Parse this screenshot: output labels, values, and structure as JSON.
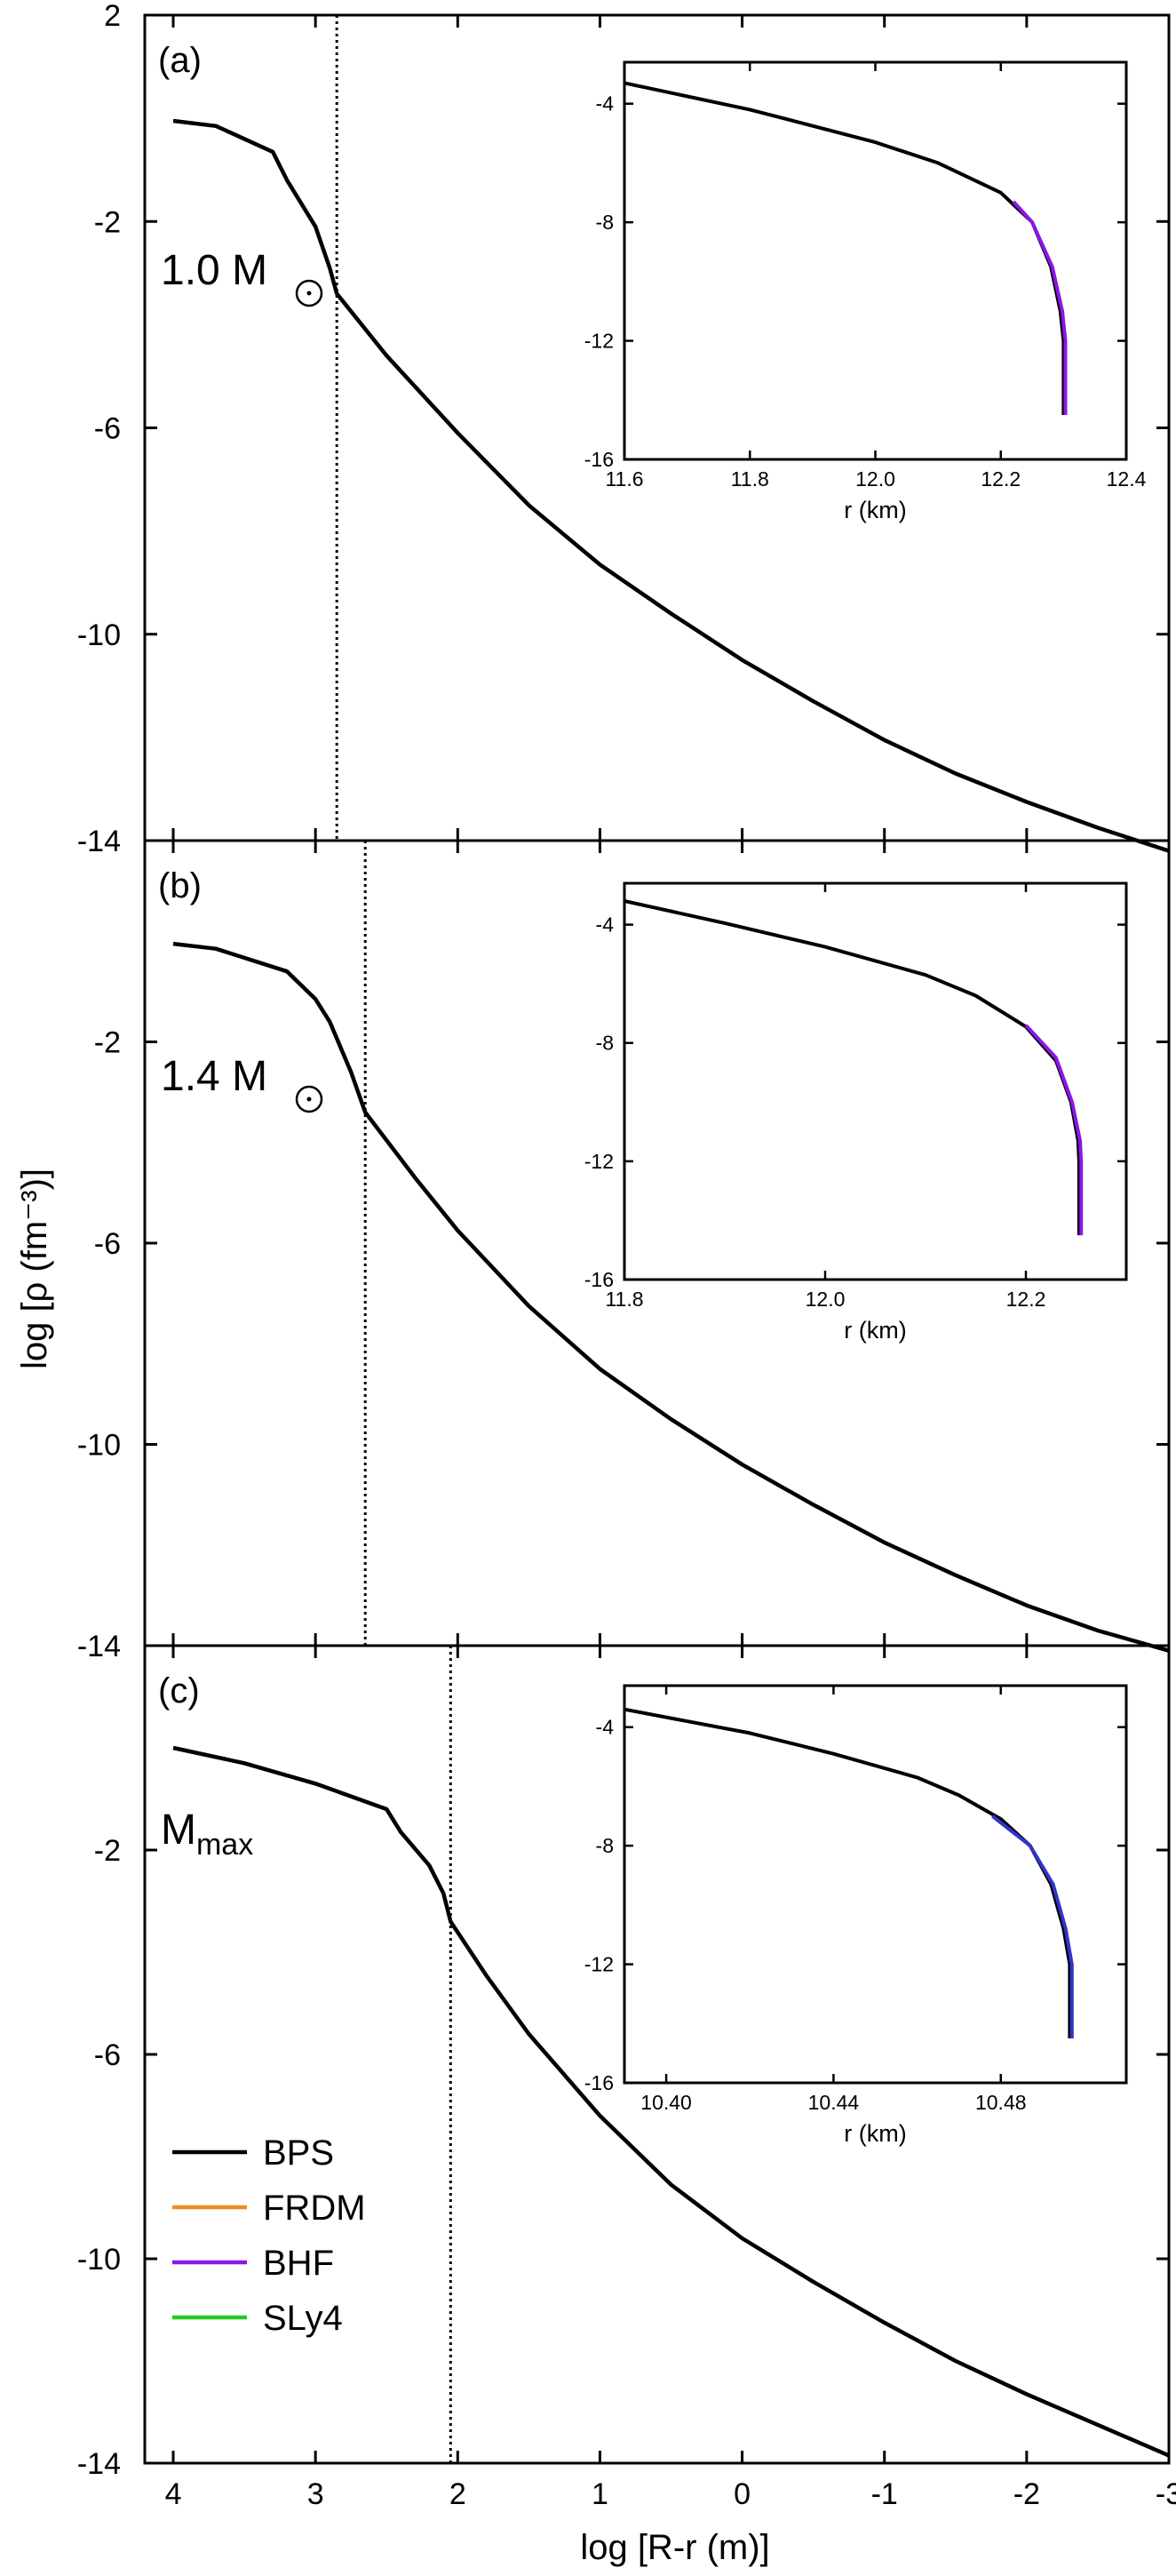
{
  "chart_data": {
    "type": "line",
    "xlabel": "log [R-r (m)]",
    "ylabel": "log [ρ (fm⁻³)]",
    "xlim": [
      4.2,
      -3.0
    ],
    "ylim": [
      -14,
      2
    ],
    "x_ticks": [
      4,
      3,
      2,
      1,
      0,
      -1,
      -2,
      -3
    ],
    "x_tick_labels": [
      "4",
      "3",
      "2",
      "1",
      "0",
      "-1",
      "-2",
      "-3"
    ],
    "y_ticks": [
      2,
      -2,
      -6,
      -10,
      -14
    ],
    "y_tick_labels": [
      "2",
      "-2",
      "-6",
      "-10",
      "-14"
    ],
    "y_tick_labels_panels_bc": [
      "",
      "-2",
      "-6",
      "-10",
      "-14"
    ],
    "legend": {
      "placement": "bottom-left",
      "entries": [
        {
          "name": "BPS",
          "color": "#000000"
        },
        {
          "name": "FRDM",
          "color": "#f28a1e"
        },
        {
          "name": "BHF",
          "color": "#8a17e6"
        },
        {
          "name": "SLy4",
          "color": "#22cc22"
        }
      ]
    },
    "panels": [
      {
        "tag": "(a)",
        "mass_label": "1.0 M",
        "mass_subscript": "",
        "mass_has_sun_symbol": true,
        "vline_x": 2.85,
        "series": [
          {
            "name": "BPS",
            "color": "#000000",
            "x": [
              4.0,
              3.7,
              3.3,
              3.2,
              3.0,
              2.9,
              2.85,
              2.5,
              2.0,
              1.5,
              1.0,
              0.5,
              0.0,
              -0.5,
              -1.0,
              -1.5,
              -2.0,
              -2.5,
              -3.0
            ],
            "y": [
              -0.05,
              -0.15,
              -0.65,
              -1.2,
              -2.1,
              -2.9,
              -3.4,
              -4.6,
              -6.1,
              -7.5,
              -8.65,
              -9.6,
              -10.5,
              -11.3,
              -12.05,
              -12.7,
              -13.25,
              -13.75,
              -14.2
            ]
          }
        ],
        "inset": {
          "xlabel": "r (km)",
          "xlim": [
            11.6,
            12.4
          ],
          "ylim": [
            -16,
            -2.6
          ],
          "x_ticks": [
            11.6,
            11.8,
            12.0,
            12.2,
            12.4
          ],
          "x_tick_labels": [
            "11.6",
            "11.8",
            "12.0",
            "12.2",
            "12.4"
          ],
          "y_ticks": [
            -4,
            -8,
            -12,
            -16
          ],
          "y_tick_labels": [
            "-4",
            "-8",
            "-12",
            "-16"
          ],
          "series": [
            {
              "name": "BPS",
              "color": "#000000",
              "x": [
                11.6,
                11.8,
                11.9,
                12.0,
                12.1,
                12.2,
                12.25,
                12.28,
                12.295,
                12.3,
                12.3
              ],
              "y": [
                -3.3,
                -4.2,
                -4.75,
                -5.3,
                -6.0,
                -7.0,
                -8.0,
                -9.5,
                -11.0,
                -12.0,
                -14.5
              ]
            },
            {
              "name": "BHF",
              "color": "#8a17e6",
              "x": [
                12.22,
                12.25,
                12.282,
                12.298,
                12.303,
                12.303
              ],
              "y": [
                -7.3,
                -8.0,
                -9.5,
                -11.0,
                -12.0,
                -14.5
              ]
            }
          ]
        }
      },
      {
        "tag": "(b)",
        "mass_label": "1.4 M",
        "mass_subscript": "",
        "mass_has_sun_symbol": true,
        "vline_x": 2.65,
        "series": [
          {
            "name": "BPS",
            "color": "#000000",
            "x": [
              4.0,
              3.7,
              3.2,
              3.0,
              2.9,
              2.75,
              2.65,
              2.3,
              2.0,
              1.5,
              1.0,
              0.5,
              0.0,
              -0.5,
              -1.0,
              -1.5,
              -2.0,
              -2.5,
              -3.0
            ],
            "y": [
              -0.05,
              -0.15,
              -0.6,
              -1.15,
              -1.6,
              -2.6,
              -3.4,
              -4.7,
              -5.75,
              -7.25,
              -8.5,
              -9.5,
              -10.4,
              -11.2,
              -11.95,
              -12.6,
              -13.2,
              -13.7,
              -14.1
            ]
          }
        ],
        "inset": {
          "xlabel": "r (km)",
          "xlim": [
            11.8,
            12.3
          ],
          "ylim": [
            -16,
            -2.6
          ],
          "x_ticks": [
            11.8,
            12.0,
            12.2
          ],
          "x_tick_labels": [
            "11.8",
            "12.0",
            "12.2"
          ],
          "y_ticks": [
            -4,
            -8,
            -12,
            -16
          ],
          "y_tick_labels": [
            "-4",
            "-8",
            "-12",
            "-16"
          ],
          "series": [
            {
              "name": "BPS",
              "color": "#000000",
              "x": [
                11.8,
                11.9,
                12.0,
                12.1,
                12.15,
                12.2,
                12.23,
                12.245,
                12.252,
                12.253,
                12.253
              ],
              "y": [
                -3.2,
                -3.95,
                -4.75,
                -5.7,
                -6.4,
                -7.45,
                -8.6,
                -10.0,
                -11.3,
                -12.0,
                -14.5
              ]
            },
            {
              "name": "BHF",
              "color": "#8a17e6",
              "x": [
                12.2,
                12.23,
                12.246,
                12.254,
                12.255,
                12.255
              ],
              "y": [
                -7.4,
                -8.5,
                -10.0,
                -11.3,
                -12.0,
                -14.5
              ]
            }
          ]
        }
      },
      {
        "tag": "(c)",
        "mass_label": "M",
        "mass_subscript": "max",
        "mass_has_sun_symbol": false,
        "vline_x": 2.05,
        "series": [
          {
            "name": "BPS",
            "color": "#000000",
            "x": [
              4.0,
              3.5,
              3.0,
              2.5,
              2.4,
              2.2,
              2.1,
              2.05,
              1.8,
              1.5,
              1.0,
              0.5,
              0.0,
              -0.5,
              -1.0,
              -1.5,
              -2.0,
              -2.5,
              -3.0
            ],
            "y": [
              0.0,
              -0.3,
              -0.7,
              -1.2,
              -1.65,
              -2.3,
              -2.85,
              -3.4,
              -4.45,
              -5.6,
              -7.2,
              -8.55,
              -9.6,
              -10.45,
              -11.25,
              -12.0,
              -12.65,
              -13.25,
              -13.85
            ]
          }
        ],
        "inset": {
          "xlabel": "r (km)",
          "xlim": [
            10.39,
            10.51
          ],
          "ylim": [
            -16,
            -2.6
          ],
          "x_ticks": [
            10.4,
            10.44,
            10.48
          ],
          "x_tick_labels": [
            "10.40",
            "10.44",
            "10.48"
          ],
          "y_ticks": [
            -4,
            -8,
            -12,
            -16
          ],
          "y_tick_labels": [
            "-4",
            "-8",
            "-12",
            "-16"
          ],
          "series": [
            {
              "name": "BPS",
              "color": "#000000",
              "x": [
                10.39,
                10.42,
                10.44,
                10.46,
                10.47,
                10.48,
                10.487,
                10.492,
                10.495,
                10.4965,
                10.4965
              ],
              "y": [
                -3.4,
                -4.2,
                -4.9,
                -5.7,
                -6.3,
                -7.1,
                -8.0,
                -9.3,
                -10.8,
                -12.0,
                -14.5
              ]
            },
            {
              "name": "BHF",
              "color": "#3333cc",
              "x": [
                10.478,
                10.487,
                10.4925,
                10.4955,
                10.497,
                10.497
              ],
              "y": [
                -7.0,
                -8.0,
                -9.3,
                -10.8,
                -12.0,
                -14.5
              ]
            }
          ]
        }
      }
    ]
  }
}
